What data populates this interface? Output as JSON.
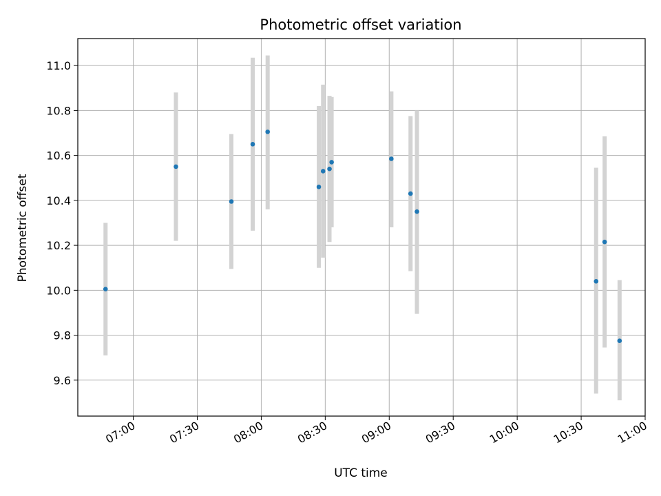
{
  "chart_data": {
    "type": "scatter",
    "title": "Photometric offset variation",
    "xlabel": "UTC time",
    "ylabel": "Photometric offset",
    "x_axis": {
      "type": "time",
      "range": [
        "06:34",
        "11:00"
      ],
      "ticks": [
        "07:00",
        "07:30",
        "08:00",
        "08:30",
        "09:00",
        "09:30",
        "10:00",
        "10:30",
        "11:00"
      ]
    },
    "y_axis": {
      "range": [
        9.44,
        11.12
      ],
      "ticks": [
        "9.6",
        "9.8",
        "10.0",
        "10.2",
        "10.4",
        "10.6",
        "10.8",
        "11.0"
      ]
    },
    "grid": true,
    "point_color": "#1f77b4",
    "errorbar_color": "#d3d3d3",
    "points": [
      {
        "x": "06:47",
        "y": 10.005,
        "low": 9.71,
        "high": 10.3
      },
      {
        "x": "07:20",
        "y": 10.55,
        "low": 10.22,
        "high": 10.88
      },
      {
        "x": "07:46",
        "y": 10.395,
        "low": 10.095,
        "high": 10.695
      },
      {
        "x": "07:56",
        "y": 10.65,
        "low": 10.265,
        "high": 11.035
      },
      {
        "x": "08:03",
        "y": 10.705,
        "low": 10.36,
        "high": 11.045
      },
      {
        "x": "08:27",
        "y": 10.46,
        "low": 10.1,
        "high": 10.82
      },
      {
        "x": "08:29",
        "y": 10.53,
        "low": 10.145,
        "high": 10.915
      },
      {
        "x": "08:32",
        "y": 10.54,
        "low": 10.215,
        "high": 10.865
      },
      {
        "x": "08:33",
        "y": 10.57,
        "low": 10.28,
        "high": 10.86
      },
      {
        "x": "09:01",
        "y": 10.585,
        "low": 10.28,
        "high": 10.885
      },
      {
        "x": "09:10",
        "y": 10.43,
        "low": 10.085,
        "high": 10.775
      },
      {
        "x": "09:13",
        "y": 10.35,
        "low": 9.895,
        "high": 10.8
      },
      {
        "x": "10:37",
        "y": 10.04,
        "low": 9.54,
        "high": 10.545
      },
      {
        "x": "10:41",
        "y": 10.215,
        "low": 9.745,
        "high": 10.685
      },
      {
        "x": "10:48",
        "y": 9.775,
        "low": 9.51,
        "high": 10.045
      }
    ]
  }
}
